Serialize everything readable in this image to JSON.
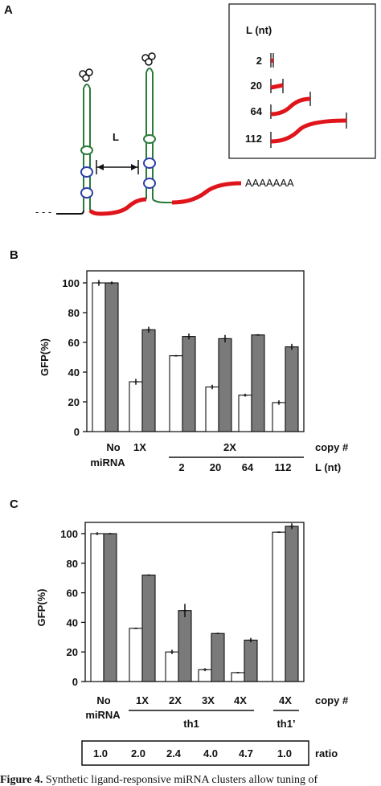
{
  "panel_a": {
    "label": "A",
    "loop_label": "L",
    "polya": "AAAAAAA",
    "leader": "- - -",
    "inset": {
      "title": "L (nt)",
      "rows": [
        "2",
        "20",
        "64",
        "112"
      ]
    }
  },
  "colors": {
    "linker_red": "#e0141b",
    "stem_green": "#2a7a3a",
    "bulge_blue": "#2b3fa8",
    "bar_white": "#ffffff",
    "bar_gray": "#7a7a7a"
  },
  "chart_data": [
    {
      "type": "bar",
      "panel": "B",
      "ylabel": "GFP(%)",
      "ylim": [
        0,
        100
      ],
      "yticks": [
        0,
        20,
        40,
        60,
        80,
        100
      ],
      "categories": [
        "No miRNA",
        "1X",
        "2X L=2",
        "2X L=20",
        "2X L=64",
        "2X L=112"
      ],
      "series": [
        {
          "values": [
            100,
            33.5,
            51,
            30,
            24.5,
            19.5
          ],
          "errors": [
            2,
            2,
            0.5,
            1.5,
            1,
            1.5
          ]
        },
        {
          "values": [
            100,
            68.5,
            64,
            62.5,
            65,
            57
          ],
          "errors": [
            1,
            2,
            2,
            2.5,
            0.5,
            2
          ]
        }
      ],
      "group_labels": {
        "no_line1": "No",
        "no_line2": "miRNA",
        "one_x": "1X",
        "two_x": "2X",
        "copy": "copy #",
        "l_vals": [
          "2",
          "20",
          "64",
          "112"
        ],
        "l_unit": "L (nt)"
      }
    },
    {
      "type": "bar",
      "panel": "C",
      "ylabel": "GFP(%)",
      "ylim": [
        0,
        100
      ],
      "yticks": [
        0,
        20,
        40,
        60,
        80,
        100
      ],
      "categories": [
        "No miRNA",
        "1X th1",
        "2X th1",
        "3X th1",
        "4X th1",
        "4X th1'"
      ],
      "series": [
        {
          "values": [
            100,
            36,
            20,
            8,
            6,
            101
          ],
          "errors": [
            1,
            0.5,
            1.5,
            1,
            0.5,
            0.5
          ]
        },
        {
          "values": [
            100,
            72,
            48,
            32.5,
            28,
            105
          ],
          "errors": [
            0.5,
            0.5,
            4.5,
            0.5,
            1.5,
            2
          ]
        }
      ],
      "group_labels": {
        "no_line1": "No",
        "no_line2": "miRNA",
        "copies": [
          "1X",
          "2X",
          "3X",
          "4X",
          "4X"
        ],
        "copy": "copy #",
        "th1": "th1",
        "th1p": "th1’"
      },
      "ratio": {
        "values": [
          "1.0",
          "2.0",
          "2.4",
          "4.0",
          "4.7",
          "1.0"
        ],
        "label": "ratio"
      }
    }
  ],
  "caption": {
    "label": "Figure 4.",
    "text": "Synthetic ligand-responsive miRNA clusters allow tuning of"
  }
}
